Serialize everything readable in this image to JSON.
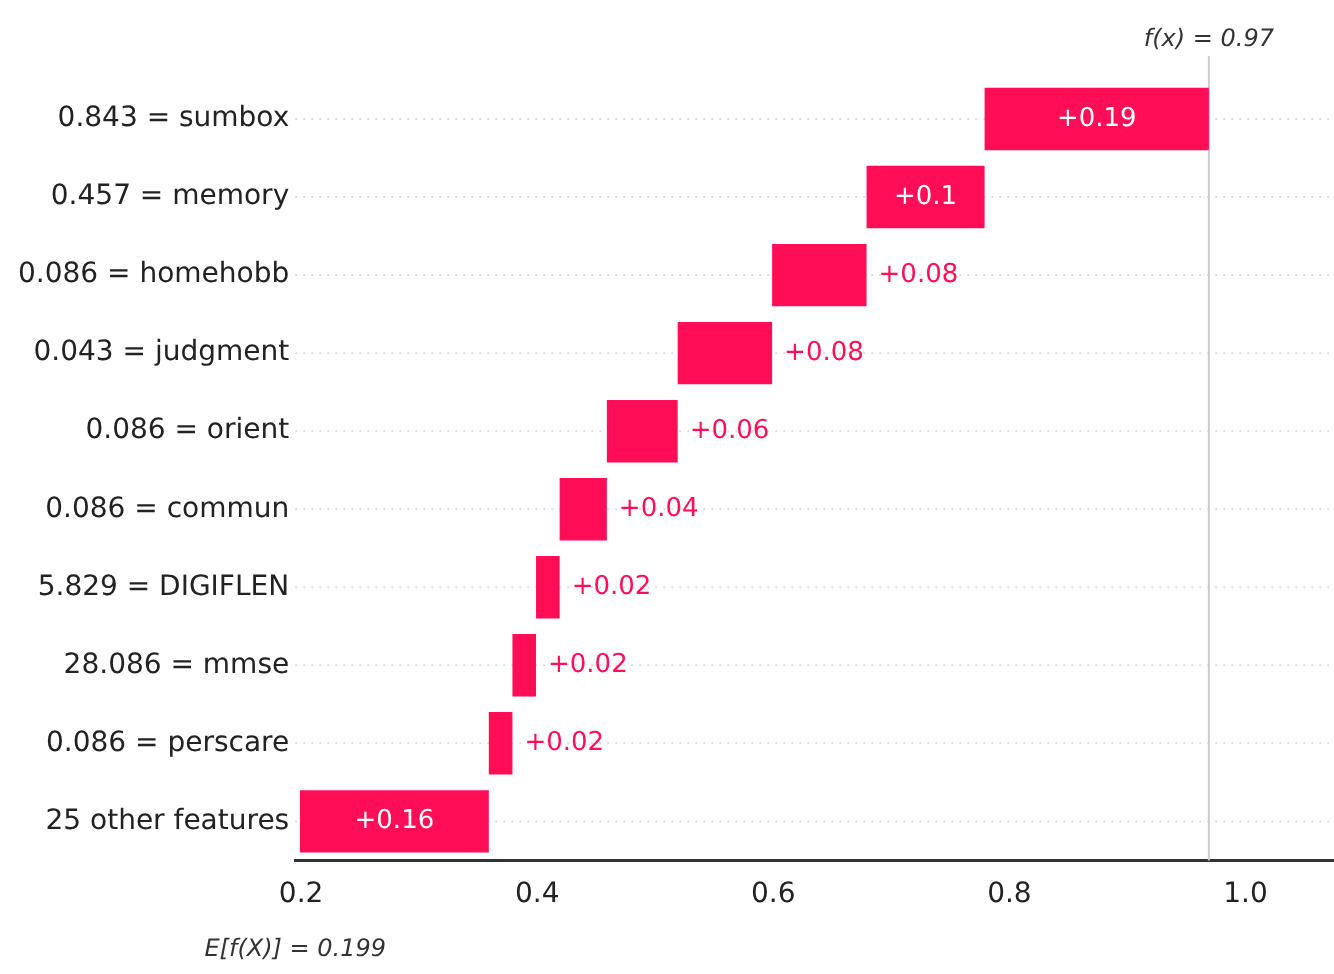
{
  "chart_data": {
    "type": "bar",
    "orientation": "horizontal",
    "categories": [
      "0.843 = sumbox",
      "0.457 = memory",
      "0.086 = homehobb",
      "0.043 = judgment",
      "0.086 = orient",
      "0.086 = commun",
      "5.829 = DIGIFLEN",
      "28.086 = mmse",
      "0.086 = perscare",
      "25 other features"
    ],
    "values": [
      0.19,
      0.1,
      0.08,
      0.08,
      0.06,
      0.04,
      0.02,
      0.02,
      0.02,
      0.16
    ],
    "base": [
      0.779,
      0.679,
      0.599,
      0.519,
      0.459,
      0.419,
      0.399,
      0.379,
      0.359,
      0.199
    ],
    "value_labels": [
      "+0.19",
      "+0.1",
      "+0.08",
      "+0.08",
      "+0.06",
      "+0.04",
      "+0.02",
      "+0.02",
      "+0.02",
      "+0.16"
    ],
    "color": "#ff0d57",
    "xlim": [
      0.195,
      1.075
    ],
    "xticks": [
      0.2,
      0.4,
      0.6,
      0.8,
      {
        "value": 1,
        "label": "1.0"
      }
    ],
    "grid": "y",
    "ref_lines": [
      {
        "axis": "x",
        "value": 0.969,
        "label": "f(x) = 0.97",
        "color": "#cccccc"
      }
    ],
    "annotations": [
      "E[f(X)] = 0.199"
    ]
  }
}
